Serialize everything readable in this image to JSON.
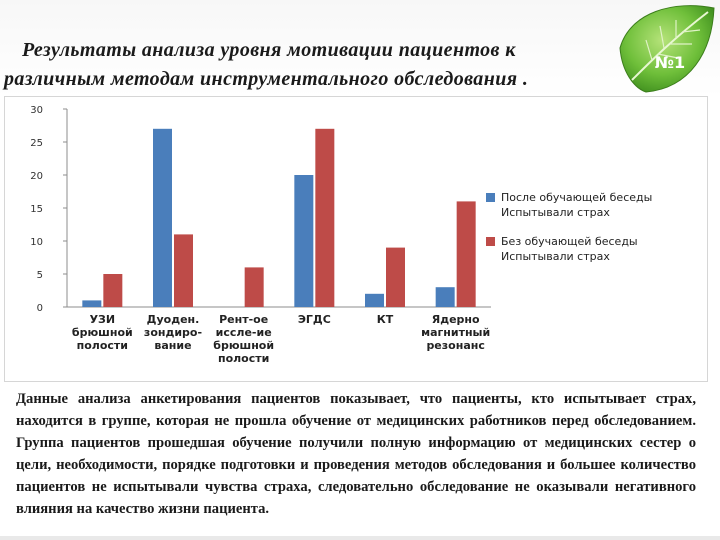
{
  "title": {
    "line1": "Результаты анализа уровня мотивации пациентов к",
    "line2": "различным методам инструментального обследования ."
  },
  "badge": {
    "label": "№1"
  },
  "chart_data": {
    "type": "bar",
    "categories": [
      "УЗИ брюшной полости",
      "Дуоден. зондиро- вание",
      "Рент-ое иссле-ие брюшной полости",
      "ЭГДС",
      "КТ",
      "Ядерно магнитный резонанс"
    ],
    "category_lines": [
      [
        "УЗИ",
        "брюшной",
        "полости"
      ],
      [
        "Дуоден.",
        "зондиро-",
        "вание"
      ],
      [
        "Рент-ое",
        "иссле-ие",
        "брюшной",
        "полости"
      ],
      [
        "ЭГДС"
      ],
      [
        "КТ"
      ],
      [
        "Ядерно",
        "магнитный",
        "резонанс"
      ]
    ],
    "series": [
      {
        "name": "После обучающей беседы Испытывали страх",
        "values": [
          1,
          27,
          0,
          20,
          2,
          3
        ],
        "color": "#4a7ebb"
      },
      {
        "name": "Без обучающей беседы Испытывали страх",
        "values": [
          5,
          11,
          6,
          27,
          9,
          16
        ],
        "color": "#be4b48"
      }
    ],
    "ylim": [
      0,
      30
    ],
    "yticks": [
      0,
      5,
      10,
      15,
      20,
      25,
      30
    ],
    "grid": false,
    "legend_position": "right"
  },
  "body_text": "Данные анализа анкетирования пациентов показывает, что пациенты, кто испытывает страх, находится в группе, которая не прошла обучение от медицинских работников перед обследованием. Группа пациентов прошедшая обучение получили полную информацию от медицинских сестер о цели, необходимости, порядке подготовки и проведения методов обследования и большее количество пациентов не испытывали чувства страха, следовательно обследование не оказывали негативного влияния на качество жизни пациента."
}
